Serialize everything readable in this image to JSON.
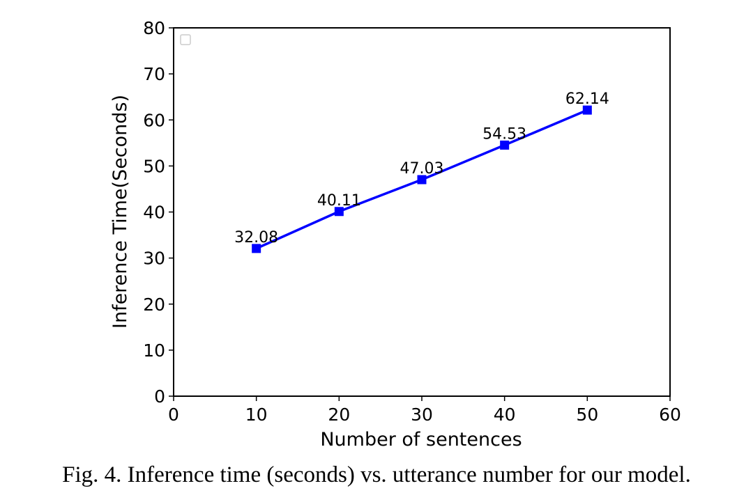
{
  "chart_data": {
    "type": "line",
    "title": "",
    "xlabel": "Number of sentences",
    "ylabel": "Inference Time(Seconds)",
    "xlim": [
      0,
      60
    ],
    "ylim": [
      0,
      80
    ],
    "xticks": [
      0,
      10,
      20,
      30,
      40,
      50,
      60
    ],
    "yticks": [
      0,
      10,
      20,
      30,
      40,
      50,
      60,
      70,
      80
    ],
    "grid": false,
    "legend": "top-left, empty",
    "series": [
      {
        "name": "",
        "color": "#0000ff",
        "marker": "square",
        "x": [
          10,
          20,
          30,
          40,
          50
        ],
        "y": [
          32.08,
          40.11,
          47.03,
          54.53,
          62.14
        ],
        "labels": [
          "32.08",
          "40.11",
          "47.03",
          "54.53",
          "62.14"
        ]
      }
    ]
  },
  "caption": {
    "text": "Fig. 4.  Inference time (seconds) vs. utterance number for our model."
  }
}
